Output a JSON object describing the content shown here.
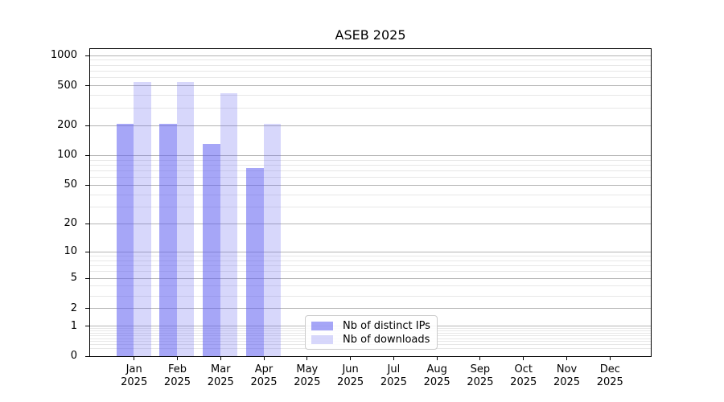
{
  "chart_data": {
    "type": "bar",
    "title": "ASEB 2025",
    "x": {
      "categories": [
        "Jan",
        "Feb",
        "Mar",
        "Apr",
        "May",
        "Jun",
        "Jul",
        "Aug",
        "Sep",
        "Oct",
        "Nov",
        "Dec"
      ],
      "year_label": "2025"
    },
    "series": [
      {
        "name": "Nb of distinct IPs",
        "color": "rgba(97,97,240,0.56)",
        "values": [
          210,
          207,
          130,
          74,
          0,
          0,
          0,
          0,
          0,
          0,
          0,
          0
        ]
      },
      {
        "name": "Nb of downloads",
        "color": "rgba(97,97,240,0.25)",
        "values": [
          545,
          545,
          420,
          207,
          0,
          0,
          0,
          0,
          0,
          0,
          0,
          0
        ]
      }
    ],
    "y_axis": {
      "scale": "symlog-log1p",
      "ymax": 1166,
      "major_ticks": [
        {
          "value": 1000,
          "label": "1000"
        },
        {
          "value": 500,
          "label": "500"
        },
        {
          "value": 200,
          "label": "200"
        },
        {
          "value": 100,
          "label": "100"
        },
        {
          "value": 50,
          "label": "50"
        },
        {
          "value": 20,
          "label": "20"
        },
        {
          "value": 10,
          "label": "10"
        },
        {
          "value": 5,
          "label": "5"
        },
        {
          "value": 2,
          "label": "2"
        },
        {
          "value": 1,
          "label": "1"
        },
        {
          "value": 0,
          "label": "0"
        }
      ],
      "minor_ticks": [
        0.2,
        0.3,
        0.4,
        0.5,
        0.6,
        0.7,
        0.8,
        0.9,
        3,
        4,
        6,
        7,
        8,
        9,
        30,
        40,
        60,
        70,
        80,
        90,
        300,
        400,
        600,
        700,
        800,
        900
      ]
    },
    "grid": {
      "horizontal_major": true,
      "horizontal_minor": true,
      "vertical": false
    },
    "legend_position": "inside-bottom-center-left"
  }
}
